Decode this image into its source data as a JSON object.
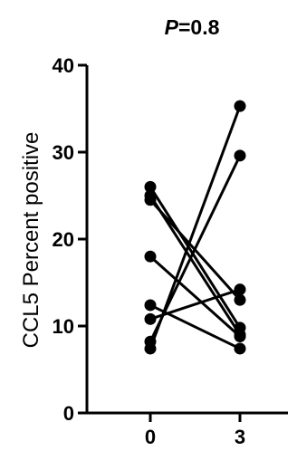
{
  "chart_data": {
    "type": "line",
    "title_prefix": "P",
    "title_value": "=0.8",
    "ylabel": "CCL5 Percent positive",
    "xlabel": "",
    "categories": [
      "0",
      "3"
    ],
    "ylim": [
      0,
      40
    ],
    "yticks": [
      "0",
      "10",
      "20",
      "30",
      "40"
    ],
    "grid": false,
    "legend": "none",
    "color": "#000000",
    "series": [
      {
        "values": [
          26.0,
          9.8
        ]
      },
      {
        "values": [
          24.5,
          13.0
        ]
      },
      {
        "values": [
          18.0,
          8.8
        ]
      },
      {
        "values": [
          12.4,
          7.4
        ]
      },
      {
        "values": [
          10.8,
          14.2
        ]
      },
      {
        "values": [
          8.2,
          29.6
        ]
      },
      {
        "values": [
          7.4,
          35.3
        ]
      },
      {
        "values": [
          25.0,
          9.0
        ]
      }
    ]
  }
}
